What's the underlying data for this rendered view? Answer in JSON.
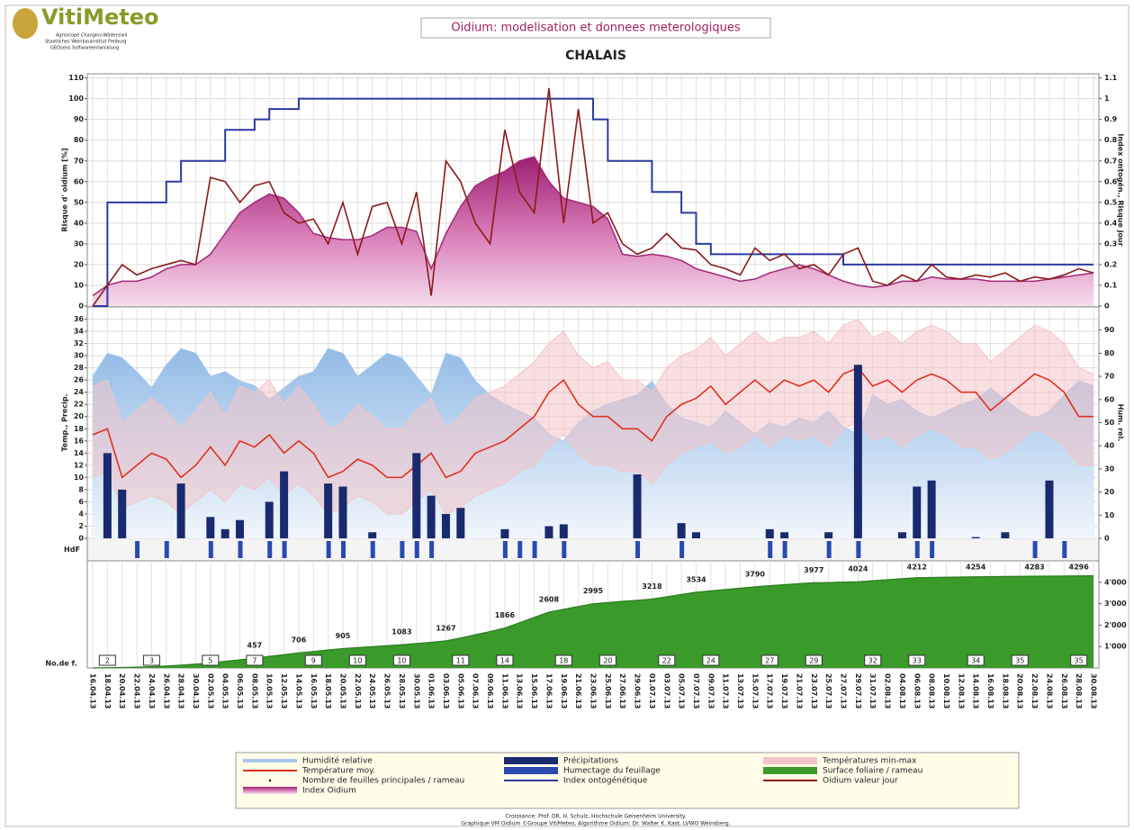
{
  "header": {
    "logo": "VitiMeteo",
    "partners": [
      "Agroscope Changins-Wädenswil",
      "Staatliches Weinbauinstitut Freiburg",
      "GEOsens Softwareentwicklung"
    ],
    "title": "Oidium: modelisation et donnees meterologiques",
    "subtitle": "CHALAIS"
  },
  "footer": [
    "Croissance: Prof. DR. H. Schulz, Hochschule Geisenheim University.",
    "Graphique VM Oidium ©Groupe VitiMeteo, Algorithme Oidium: Dr. Walter K. Kast, LVWO Weinsberg."
  ],
  "chart_data": [
    {
      "type": "line",
      "ylabel": "Risque d' oidium [%]",
      "y2label": "Index ontogén., Risque jour",
      "ylim": [
        0,
        112
      ],
      "yticks": [
        0,
        10,
        20,
        30,
        40,
        50,
        60,
        70,
        80,
        90,
        100,
        110
      ],
      "y2lim": [
        0,
        1.12
      ],
      "y2ticks": [
        0,
        0.1,
        0.2,
        0.3,
        0.4,
        0.5,
        0.6,
        0.7,
        0.8,
        0.9,
        1,
        1.1
      ],
      "grid": true,
      "series": [
        {
          "name": "Index Oidium",
          "color": "#a3287a",
          "values": [
            5,
            10,
            12,
            12,
            14,
            18,
            20,
            20,
            25,
            35,
            45,
            50,
            54,
            52,
            45,
            35,
            33,
            32,
            32,
            34,
            38,
            38,
            36,
            18,
            35,
            48,
            58,
            62,
            65,
            70,
            72,
            60,
            52,
            50,
            48,
            42,
            25,
            24,
            25,
            24,
            22,
            18,
            16,
            14,
            12,
            13,
            16,
            18,
            20,
            18,
            15,
            12,
            10,
            9,
            10,
            12,
            12,
            14,
            13,
            13,
            13,
            12,
            12,
            12,
            12,
            13,
            14,
            15,
            16
          ]
        },
        {
          "name": "Index ontogénétique",
          "color": "#2b3a9e",
          "axis": "y2",
          "values": [
            0,
            0.5,
            0.5,
            0.5,
            0.5,
            0.6,
            0.7,
            0.7,
            0.7,
            0.85,
            0.85,
            0.9,
            0.95,
            0.95,
            1,
            1,
            1,
            1,
            1,
            1,
            1,
            1,
            1,
            1,
            1,
            1,
            1,
            1,
            1,
            1,
            1,
            1,
            1,
            1,
            0.9,
            0.7,
            0.7,
            0.7,
            0.55,
            0.55,
            0.45,
            0.3,
            0.25,
            0.25,
            0.25,
            0.25,
            0.25,
            0.25,
            0.25,
            0.25,
            0.25,
            0.2,
            0.2,
            0.2,
            0.2,
            0.2,
            0.2,
            0.2,
            0.2,
            0.2,
            0.2,
            0.2,
            0.2,
            0.2,
            0.2,
            0.2,
            0.2,
            0.2,
            0.2
          ]
        },
        {
          "name": "Oidium valeur jour",
          "color": "#8b1a1a",
          "values": [
            0,
            10,
            20,
            15,
            18,
            20,
            22,
            20,
            62,
            60,
            50,
            58,
            60,
            45,
            40,
            42,
            30,
            50,
            25,
            48,
            50,
            30,
            55,
            5,
            70,
            60,
            40,
            30,
            85,
            55,
            45,
            105,
            40,
            95,
            40,
            45,
            30,
            25,
            28,
            35,
            28,
            27,
            20,
            18,
            15,
            28,
            22,
            25,
            18,
            20,
            15,
            25,
            28,
            12,
            10,
            15,
            12,
            20,
            14,
            13,
            15,
            14,
            16,
            12,
            14,
            13,
            15,
            18,
            16
          ]
        }
      ]
    },
    {
      "type": "combo",
      "ylabel": "Temp., Precip.",
      "y2label": "Hum. rel.",
      "ylim": [
        0,
        38
      ],
      "yticks": [
        0,
        2,
        4,
        6,
        8,
        10,
        12,
        14,
        16,
        18,
        20,
        22,
        24,
        26,
        28,
        30,
        32,
        34,
        36
      ],
      "y2lim": [
        0,
        100
      ],
      "y2ticks": [
        0,
        10,
        20,
        30,
        40,
        50,
        60,
        70,
        80,
        90
      ],
      "grid": true,
      "series": [
        {
          "name": "Humidité relative",
          "color": "#a8c8ea",
          "axis": "y2",
          "values": [
            70,
            80,
            78,
            72,
            65,
            75,
            82,
            80,
            70,
            72,
            68,
            66,
            60,
            65,
            70,
            72,
            82,
            80,
            70,
            75,
            80,
            78,
            70,
            62,
            80,
            78,
            68,
            62,
            58,
            55,
            52,
            45,
            42,
            50,
            55,
            58,
            60,
            62,
            68,
            58,
            52,
            50,
            48,
            55,
            50,
            45,
            50,
            48,
            52,
            50,
            55,
            48,
            45,
            62,
            58,
            60,
            55,
            52,
            55,
            58,
            60,
            65,
            60,
            55,
            52,
            55,
            62,
            68,
            66
          ]
        },
        {
          "name": "Températures min-max",
          "color": "#f4c4c8",
          "values": [
            25,
            26,
            19,
            21,
            23,
            21,
            18,
            21,
            24,
            20,
            25,
            24,
            26,
            22,
            25,
            22,
            18,
            19,
            22,
            20,
            18,
            18,
            21,
            23,
            18,
            20,
            23,
            24,
            25,
            27,
            29,
            32,
            34,
            30,
            28,
            29,
            26,
            26,
            24,
            28,
            30,
            31,
            33,
            30,
            32,
            34,
            32,
            33,
            33,
            34,
            32,
            35,
            36,
            33,
            34,
            32,
            34,
            35,
            34,
            32,
            32,
            29,
            31,
            33,
            35,
            34,
            32,
            28,
            27
          ],
          "lower": [
            10,
            11,
            5,
            6,
            7,
            6,
            4,
            6,
            8,
            6,
            9,
            8,
            10,
            7,
            9,
            7,
            4,
            5,
            7,
            6,
            4,
            4,
            6,
            8,
            4,
            5,
            7,
            8,
            9,
            11,
            12,
            15,
            17,
            14,
            12,
            12,
            11,
            11,
            9,
            12,
            14,
            15,
            16,
            14,
            15,
            17,
            15,
            17,
            16,
            17,
            15,
            18,
            19,
            16,
            17,
            15,
            17,
            18,
            17,
            15,
            15,
            13,
            14,
            16,
            18,
            17,
            15,
            12,
            12
          ]
        },
        {
          "name": "Température moy.",
          "color": "#e03020",
          "values": [
            17,
            18,
            10,
            12,
            14,
            13,
            10,
            12,
            15,
            12,
            16,
            15,
            17,
            14,
            16,
            14,
            10,
            11,
            13,
            12,
            10,
            10,
            12,
            14,
            10,
            11,
            14,
            15,
            16,
            18,
            20,
            24,
            26,
            22,
            20,
            20,
            18,
            18,
            16,
            20,
            22,
            23,
            25,
            22,
            24,
            26,
            24,
            26,
            25,
            26,
            24,
            27,
            28,
            25,
            26,
            24,
            26,
            27,
            26,
            24,
            24,
            21,
            23,
            25,
            27,
            26,
            24,
            20,
            20
          ]
        },
        {
          "name": "Précipitations",
          "color": "#1a2a6e",
          "values": [
            0,
            14,
            8,
            0,
            0,
            0,
            9,
            0,
            3.5,
            1.5,
            3,
            0,
            6,
            11,
            0,
            0,
            9,
            8.5,
            0,
            1,
            0,
            0,
            14,
            7,
            4,
            5,
            0,
            0,
            1.5,
            0,
            0,
            2,
            2.3,
            0,
            0,
            0,
            0,
            10.5,
            0,
            0,
            2.5,
            1,
            0,
            0,
            0,
            0,
            1.5,
            1,
            0,
            0,
            1,
            0,
            28.5,
            0,
            0,
            1,
            8.5,
            9.5,
            0,
            0,
            0.2,
            0,
            1,
            0,
            0,
            9.5,
            0,
            0,
            0
          ]
        }
      ]
    },
    {
      "type": "strip",
      "ylabel": "HdF",
      "series": [
        {
          "name": "Humectage du feuillage",
          "color": "#2a4ab0",
          "values": [
            0,
            0,
            0,
            1,
            0,
            1,
            0,
            0,
            1,
            0,
            1,
            0,
            1,
            1,
            0,
            0,
            1,
            1,
            0,
            1,
            0,
            1,
            1,
            1,
            0,
            0,
            0,
            0,
            1,
            1,
            1,
            0,
            1,
            0,
            0,
            0,
            0,
            1,
            0,
            0,
            1,
            0,
            0,
            0,
            0,
            0,
            1,
            1,
            0,
            0,
            1,
            0,
            1,
            0,
            0,
            0,
            1,
            1,
            0,
            0,
            0,
            0,
            0,
            0,
            1,
            0,
            1,
            0,
            0
          ]
        }
      ]
    },
    {
      "type": "area",
      "ylabel": "No.de f.",
      "ylim": [
        0,
        5000
      ],
      "y2ticks": [
        {
          "value": 1000,
          "label": "1'000"
        },
        {
          "value": 2000,
          "label": "2'000"
        },
        {
          "value": 3000,
          "label": "3'000"
        },
        {
          "value": 4000,
          "label": "4'000"
        }
      ],
      "categories": [
        "16.04.13",
        "18.04.13",
        "20.04.13",
        "22.04.13",
        "24.04.13",
        "26.04.13",
        "28.04.13",
        "30.04.13",
        "02.05.13",
        "04.05.13",
        "06.05.13",
        "08.05.13",
        "10.05.13",
        "12.05.13",
        "14.05.13",
        "16.05.13",
        "18.05.13",
        "20.05.13",
        "22.05.13",
        "24.05.13",
        "26.05.13",
        "28.05.13",
        "30.05.13",
        "01.06.13",
        "03.06.13",
        "05.06.13",
        "07.06.13",
        "09.06.13",
        "11.06.13",
        "13.06.13",
        "15.06.13",
        "17.06.13",
        "19.06.13",
        "21.06.13",
        "23.06.13",
        "25.06.13",
        "27.06.13",
        "29.06.13",
        "01.07.13",
        "03.07.13",
        "05.07.13",
        "07.07.13",
        "09.07.13",
        "11.07.13",
        "13.07.13",
        "15.07.13",
        "17.07.13",
        "19.07.13",
        "21.07.13",
        "23.07.13",
        "25.07.13",
        "27.07.13",
        "29.07.13",
        "31.07.13",
        "02.08.13",
        "04.08.13",
        "06.08.13",
        "08.08.13",
        "10.08.13",
        "12.08.13",
        "14.08.13",
        "16.08.13",
        "18.08.13",
        "20.08.13",
        "22.08.13",
        "24.08.13",
        "26.08.13",
        "28.08.13",
        "30.08.13"
      ],
      "series": [
        {
          "name": "Surface foliaire / rameau",
          "color": "#3a9a2a",
          "values": [
            0,
            10,
            20,
            40,
            60,
            90,
            130,
            180,
            240,
            310,
            380,
            457,
            540,
            620,
            706,
            770,
            840,
            905,
            950,
            995,
            1040,
            1083,
            1140,
            1200,
            1267,
            1400,
            1550,
            1700,
            1866,
            2110,
            2360,
            2608,
            2740,
            2870,
            2995,
            3050,
            3110,
            3160,
            3218,
            3320,
            3430,
            3534,
            3600,
            3660,
            3725,
            3790,
            3840,
            3890,
            3935,
            3977,
            3990,
            4010,
            4024,
            4070,
            4120,
            4165,
            4212,
            4222,
            4233,
            4244,
            4254,
            4262,
            4269,
            4276,
            4283,
            4287,
            4292,
            4296,
            4300
          ],
          "value_labels": [
            null,
            null,
            null,
            null,
            null,
            null,
            null,
            null,
            null,
            null,
            null,
            "457",
            null,
            null,
            "706",
            null,
            null,
            "905",
            null,
            null,
            null,
            "1083",
            null,
            null,
            "1267",
            null,
            null,
            null,
            "1866",
            null,
            null,
            "2608",
            null,
            null,
            "2995",
            null,
            null,
            null,
            "3218",
            null,
            null,
            "3534",
            null,
            null,
            null,
            "3790",
            null,
            null,
            null,
            "3977",
            null,
            null,
            "4024",
            null,
            null,
            null,
            "4212",
            null,
            null,
            null,
            "4254",
            null,
            null,
            null,
            "4283",
            null,
            null,
            "4296",
            null
          ]
        },
        {
          "name": "Nombre de feuilles principales / rameau",
          "color": "#000000",
          "values": [
            null,
            2,
            null,
            null,
            3,
            null,
            null,
            null,
            5,
            null,
            null,
            7,
            null,
            null,
            null,
            9,
            null,
            null,
            10,
            null,
            null,
            10,
            null,
            null,
            null,
            11,
            null,
            null,
            14,
            null,
            null,
            null,
            18,
            null,
            null,
            20,
            null,
            null,
            null,
            22,
            null,
            null,
            24,
            null,
            null,
            null,
            27,
            null,
            null,
            29,
            null,
            null,
            null,
            32,
            null,
            null,
            33,
            null,
            null,
            null,
            34,
            null,
            null,
            35,
            null,
            null,
            null,
            35,
            null
          ]
        }
      ]
    }
  ]
}
